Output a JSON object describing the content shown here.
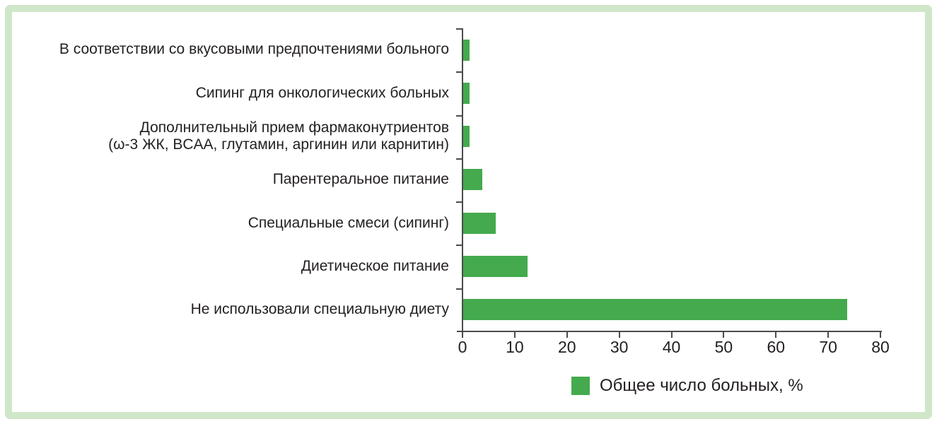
{
  "chart_data": {
    "type": "bar",
    "orientation": "horizontal",
    "title": "",
    "categories": [
      "В соответствии со вкусовыми предпочтениями больного",
      "Сипинг для онкологических больных",
      "Дополнительный прием фармаконутриентов\n(ω-3 ЖК, BCAA, глутамин, аргинин или карнитин)",
      "Парентеральное питание",
      "Специальные смеси (сипинг)",
      "Диетическое питание",
      "Не использовали специальную диету"
    ],
    "values": [
      1.2,
      1.2,
      1.2,
      3.7,
      6.2,
      12.3,
      73.5
    ],
    "xlabel": "",
    "ylabel": "",
    "xlim": [
      0,
      80
    ],
    "x_ticks": [
      0,
      10,
      20,
      30,
      40,
      50,
      60,
      70,
      80
    ],
    "grid": false,
    "legend_position": "bottom",
    "legend": {
      "label": "Общее число больных, %"
    },
    "colors": {
      "bar": "#44aa4d",
      "frame": "#cfe6c9",
      "axis": "#4b4b4d",
      "text": "#231f20"
    }
  }
}
